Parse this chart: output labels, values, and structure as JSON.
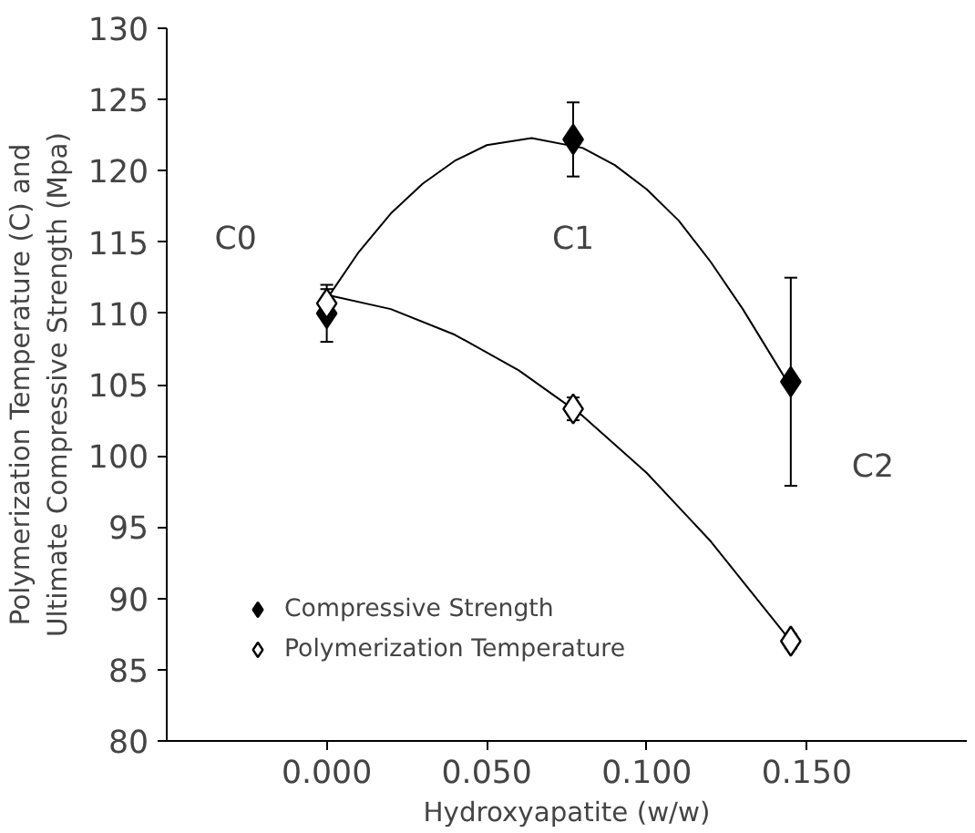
{
  "chart_data": {
    "type": "scatter",
    "xlabel": "Hydroxyapatite (w/w)",
    "ylabel": "Polymerization Temperature (C) and\nUltimate Compressive Strength (Mpa)",
    "x": [
      0.0,
      0.077,
      0.145
    ],
    "series": [
      {
        "name": "Compressive Strength",
        "color": "#000000",
        "marker": "diamond",
        "values": [
          110,
          122.2,
          105.2
        ],
        "errors": [
          2,
          2.6,
          7.3
        ]
      },
      {
        "name": "Polymerization Temperature",
        "color": "#ffffff",
        "marker": "diamond",
        "values": [
          110.7,
          103.3,
          87
        ],
        "errors": [
          1,
          0.8,
          0.5
        ]
      },
      {
        "type": "line",
        "color": "#000000",
        "x": [
          0,
          0.01,
          0.02,
          0.03,
          0.04,
          0.05,
          0.064,
          0.08,
          0.09,
          0.1,
          0.11,
          0.12,
          0.13,
          0.145
        ],
        "values": [
          111,
          114.3,
          117,
          119.1,
          120.7,
          121.8,
          122.3,
          121.6,
          120.4,
          118.7,
          116.5,
          113.6,
          110.3,
          104.8
        ]
      },
      {
        "type": "line",
        "color": "#000000",
        "x": [
          0,
          0.02,
          0.04,
          0.06,
          0.08,
          0.1,
          0.12,
          0.145
        ],
        "values": [
          111.3,
          110.3,
          108.5,
          106,
          102.8,
          98.8,
          94,
          87
        ]
      }
    ],
    "xlim": [
      -0.05,
      0.2
    ],
    "xticks": [
      {
        "value": 0,
        "label": "0.000"
      },
      {
        "value": 0.05,
        "label": "0.050"
      },
      {
        "value": 0.1,
        "label": "0.100"
      },
      {
        "value": 0.15,
        "label": "0.150"
      }
    ],
    "ylim": [
      80,
      130
    ],
    "yticks": [
      80,
      85,
      90,
      95,
      100,
      105,
      110,
      115,
      120,
      125,
      130
    ],
    "annotations": [
      "C0",
      "C1",
      "C2"
    ],
    "grid": false,
    "legend": "bottom left"
  }
}
